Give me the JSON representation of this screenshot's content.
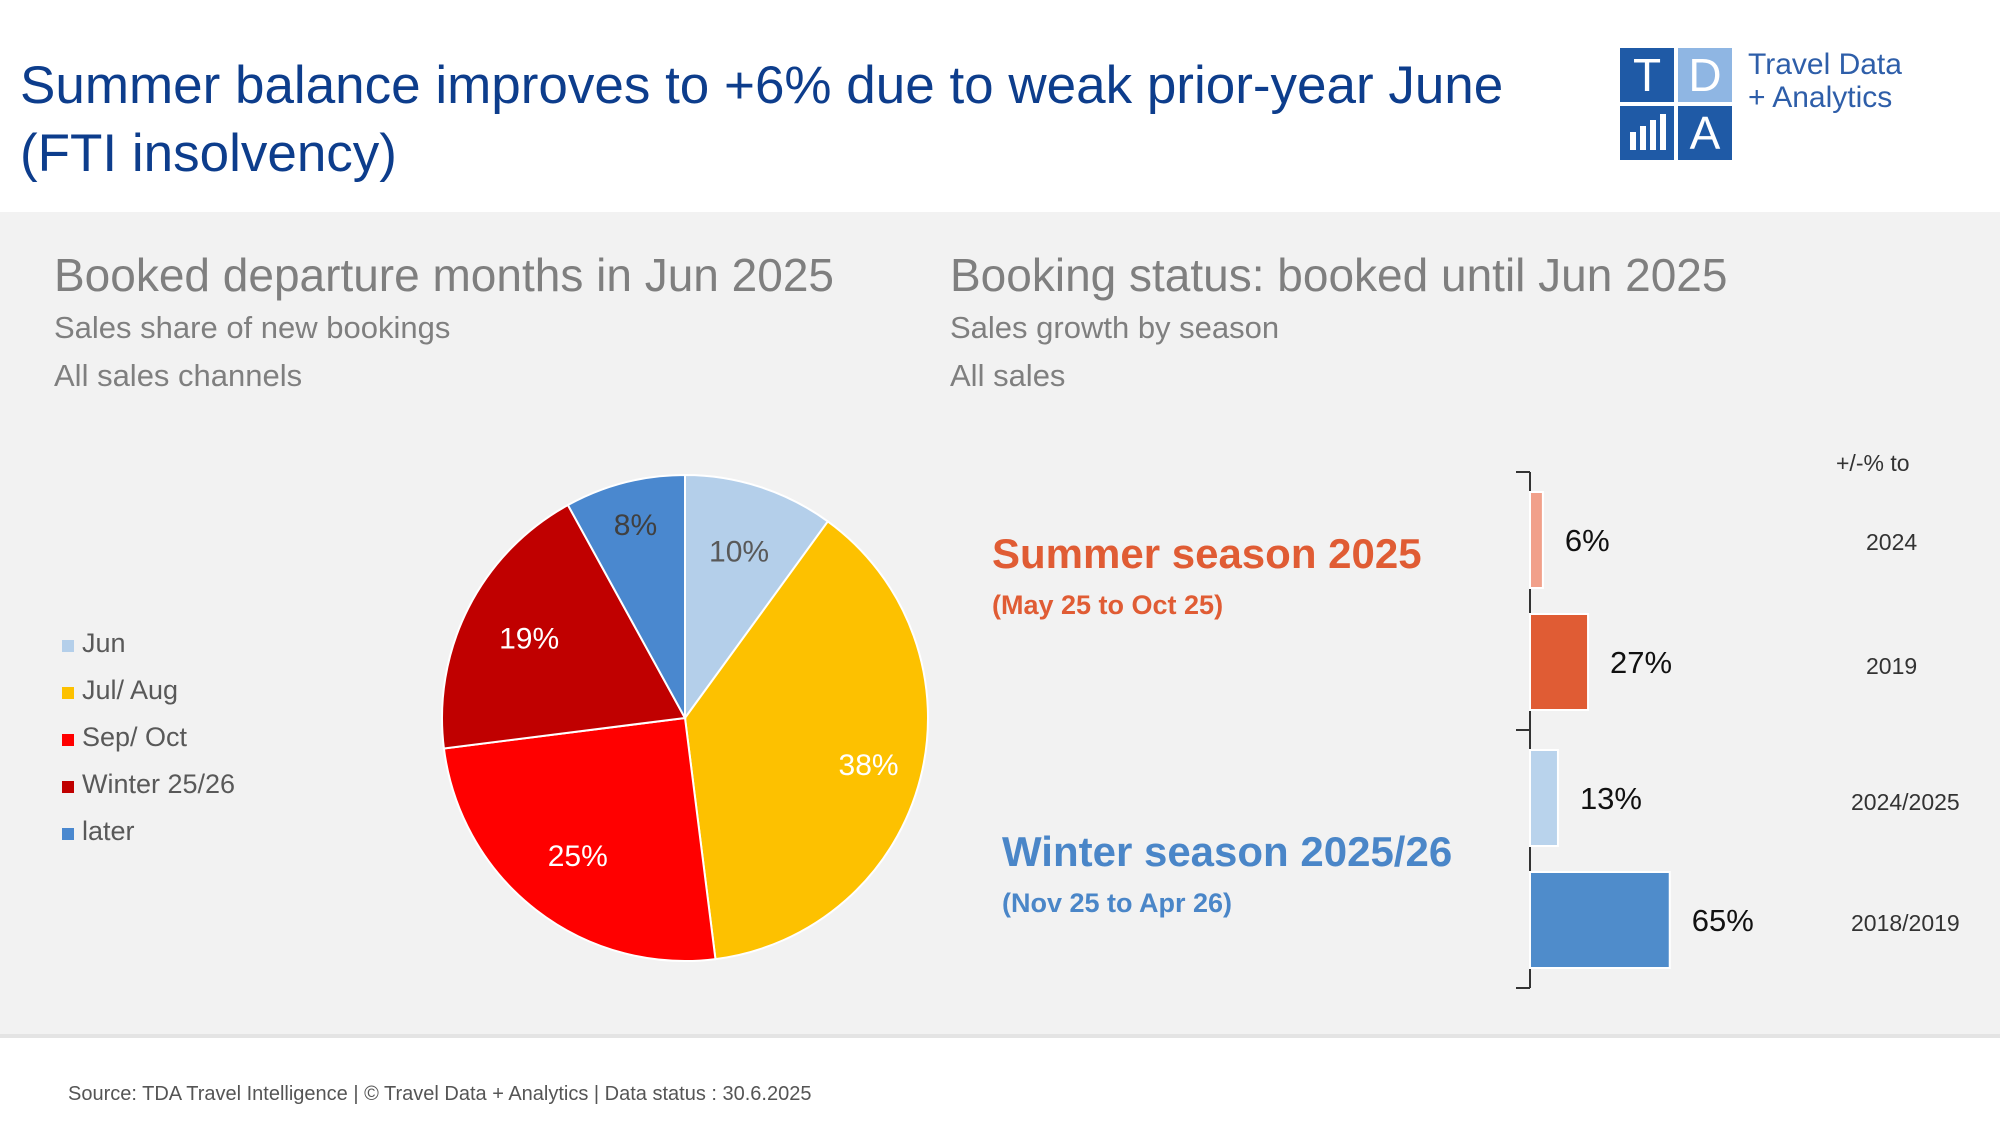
{
  "header": {
    "title_line1": "Summer balance improves to +6% due to weak prior-year June",
    "title_line2": "(FTI insolvency)"
  },
  "logo": {
    "letters": [
      "T",
      "D",
      "",
      "A"
    ],
    "text_line1": "Travel Data",
    "text_line2": "+ Analytics",
    "icon": "bar-chart-icon",
    "colors": {
      "dark_blue": "#1f5aa6",
      "light_blue": "#8fb6e3"
    }
  },
  "left_chart": {
    "title": "Booked departure months in Jun 2025",
    "subtitle1": "Sales share of new bookings",
    "subtitle2": "All sales channels",
    "legend": [
      "Jun",
      "Jul/ Aug",
      "Sep/ Oct",
      "Winter 25/26",
      "later"
    ]
  },
  "right_chart": {
    "title": "Booking status: booked until Jun 2025",
    "subtitle1": "Sales growth by season",
    "subtitle2": "All sales",
    "column_header": "+/-% to",
    "summer": {
      "title": "Summer season 2025",
      "range": "(May 25 to Oct 25)",
      "color": "#e05c34"
    },
    "winter": {
      "title": "Winter season 2025/26",
      "range": "(Nov 25 to Apr 26)",
      "color": "#4a86c8"
    },
    "reference_labels": [
      "2024",
      "2019",
      "2024/2025",
      "2018/2019"
    ]
  },
  "chart_data": [
    {
      "type": "pie",
      "title": "Booked departure months in Jun 2025",
      "categories": [
        "Jun",
        "Jul/ Aug",
        "Sep/ Oct",
        "Winter 25/26",
        "later"
      ],
      "values": [
        10,
        38,
        25,
        19,
        8
      ],
      "labels": [
        "10%",
        "38%",
        "25%",
        "19%",
        "8%"
      ],
      "colors": [
        "#b4cfea",
        "#fdc100",
        "#ff0000",
        "#c00000",
        "#4a88cf"
      ],
      "legend": "left"
    },
    {
      "type": "bar",
      "orientation": "horizontal",
      "title": "Booking status: booked until Jun 2025",
      "categories": [
        "2024",
        "2019",
        "2024/2025",
        "2018/2019"
      ],
      "values": [
        6,
        27,
        13,
        65
      ],
      "labels": [
        "6%",
        "27%",
        "13%",
        "65%"
      ],
      "groups": [
        "Summer season 2025",
        "Summer season 2025",
        "Winter season 2025/26",
        "Winter season 2025/26"
      ],
      "colors": [
        "#f1a08a",
        "#e05c34",
        "#b9d3ec",
        "#4f8ccb"
      ]
    }
  ],
  "footer": {
    "source": "Source: TDA Travel Intelligence   |   © Travel Data + Analytics   | Data status : 30.6.2025"
  }
}
